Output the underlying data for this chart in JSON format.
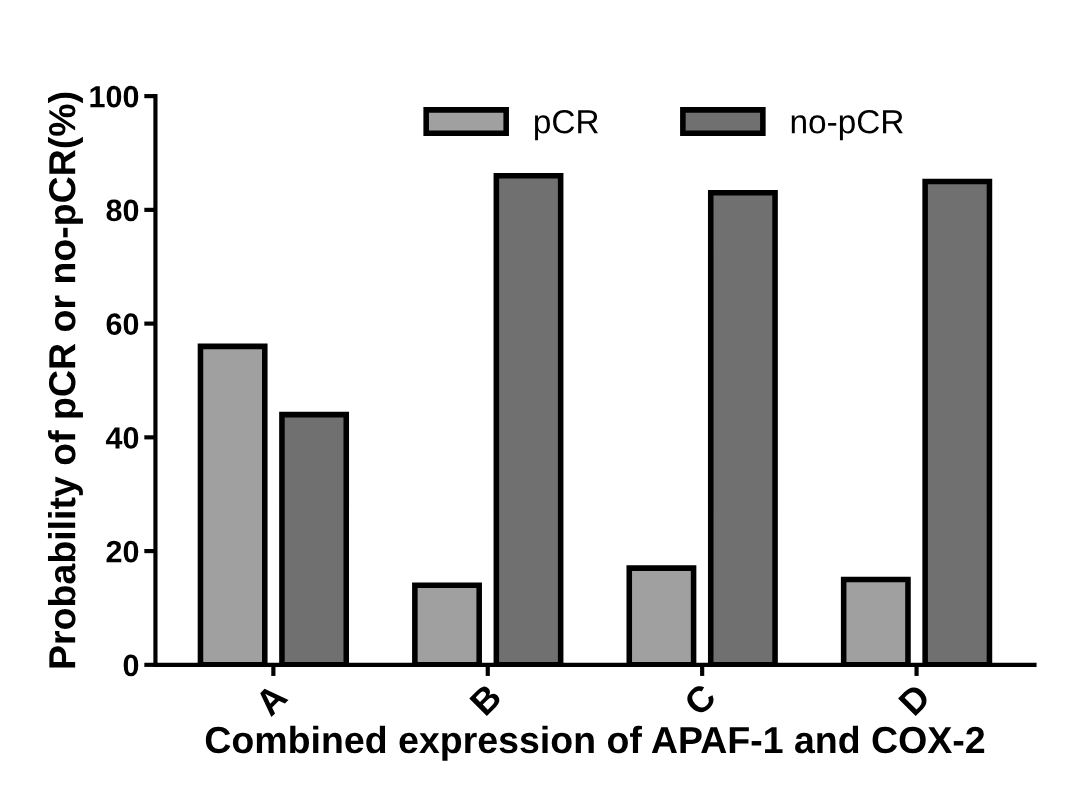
{
  "chart_data": {
    "type": "bar",
    "xlabel": "Combined expression of APAF-1 and COX-2",
    "ylabel": "Probability of pCR or no-pCR(%)",
    "categories": [
      "A",
      "B",
      "C",
      "D"
    ],
    "series": [
      {
        "name": "pCR",
        "color": "#a0a0a0",
        "values": [
          56,
          14,
          17,
          15
        ]
      },
      {
        "name": "no-pCR",
        "color": "#707070",
        "values": [
          44,
          86,
          83,
          85
        ]
      }
    ],
    "ylim": [
      0,
      100
    ],
    "yticks": [
      0,
      20,
      40,
      60,
      80,
      100
    ],
    "grid": false,
    "legend": "top"
  }
}
